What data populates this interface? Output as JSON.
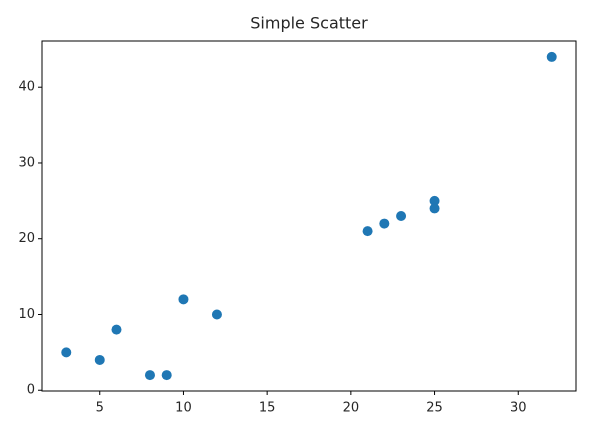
{
  "chart_data": {
    "type": "scatter",
    "title": "Simple Scatter",
    "x": [
      3,
      5,
      6,
      8,
      9,
      10,
      12,
      21,
      22,
      23,
      25,
      25,
      32
    ],
    "values": [
      5,
      4,
      8,
      2,
      2,
      12,
      10,
      21,
      22,
      23,
      25,
      24,
      44
    ],
    "color": "#1f77b4",
    "xlim": [
      1.55,
      33.45
    ],
    "xticks": [
      5,
      10,
      15,
      20,
      25,
      30
    ],
    "ylim": [
      -0.1,
      46.1
    ],
    "yticks": [
      0,
      10,
      20,
      30,
      40
    ]
  }
}
